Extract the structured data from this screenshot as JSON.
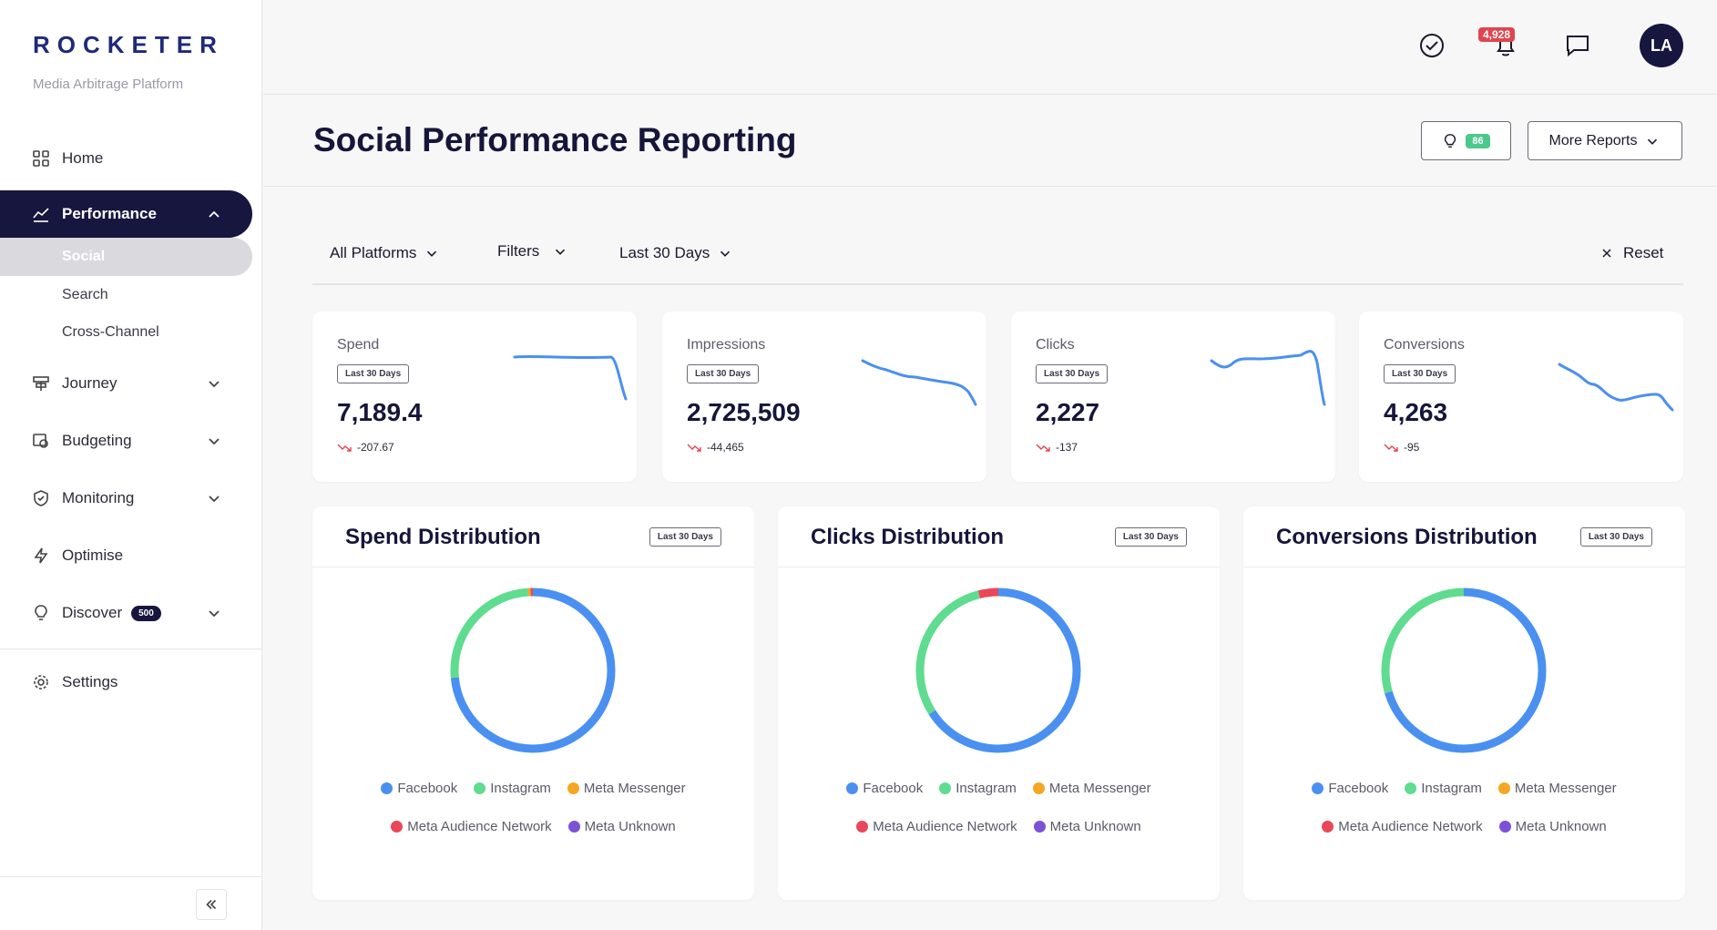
{
  "brand": {
    "name": "ROCKETER",
    "tagline": "Media Arbitrage Platform"
  },
  "sidebar": {
    "items": [
      {
        "label": "Home",
        "icon": "grid-icon"
      },
      {
        "label": "Performance",
        "icon": "chart-line-icon"
      },
      {
        "label": "Journey",
        "icon": "signpost-icon"
      },
      {
        "label": "Budgeting",
        "icon": "budget-icon"
      },
      {
        "label": "Monitoring",
        "icon": "shield-icon"
      },
      {
        "label": "Optimise",
        "icon": "bolt-icon"
      },
      {
        "label": "Discover",
        "icon": "bulb-icon",
        "badge": "500"
      },
      {
        "label": "Settings",
        "icon": "gear-icon"
      }
    ],
    "sub_items": [
      "Social",
      "Search",
      "Cross-Channel"
    ]
  },
  "topbar": {
    "notification_count": "4,928",
    "avatar_initials": "LA"
  },
  "header": {
    "title": "Social Performance Reporting",
    "insights_count": "86",
    "more_reports_label": "More Reports"
  },
  "filters": {
    "platforms": "All Platforms",
    "filters": "Filters",
    "date_range": "Last 30 Days",
    "reset": "Reset"
  },
  "kpis": [
    {
      "label": "Spend",
      "period": "Last 30 Days",
      "value": "7,189.4",
      "delta": "-207.67"
    },
    {
      "label": "Impressions",
      "period": "Last 30 Days",
      "value": "2,725,509",
      "delta": "-44,465"
    },
    {
      "label": "Clicks",
      "period": "Last 30 Days",
      "value": "2,227",
      "delta": "-137"
    },
    {
      "label": "Conversions",
      "period": "Last 30 Days",
      "value": "4,263",
      "delta": "-95"
    }
  ],
  "legend": [
    {
      "name": "Facebook",
      "color": "#4a90f0"
    },
    {
      "name": "Instagram",
      "color": "#5fdc8f"
    },
    {
      "name": "Meta Messenger",
      "color": "#f5a623"
    },
    {
      "name": "Meta Audience Network",
      "color": "#e8485a"
    },
    {
      "name": "Meta Unknown",
      "color": "#7b52d6"
    }
  ],
  "chart_data": [
    {
      "type": "pie",
      "title": "Spend Distribution",
      "period": "Last 30 Days",
      "categories": [
        "Facebook",
        "Instagram",
        "Meta Messenger",
        "Meta Audience Network",
        "Meta Unknown"
      ],
      "values": [
        73.5,
        25.5,
        0.5,
        0.5,
        0
      ]
    },
    {
      "type": "pie",
      "title": "Clicks Distribution",
      "period": "Last 30 Days",
      "categories": [
        "Facebook",
        "Instagram",
        "Meta Messenger",
        "Meta Audience Network",
        "Meta Unknown"
      ],
      "values": [
        66,
        30,
        0,
        4,
        0
      ]
    },
    {
      "type": "pie",
      "title": "Conversions Distribution",
      "period": "Last 30 Days",
      "categories": [
        "Facebook",
        "Instagram",
        "Meta Messenger",
        "Meta Audience Network",
        "Meta Unknown"
      ],
      "values": [
        70.5,
        29.5,
        0,
        0,
        0
      ]
    }
  ]
}
